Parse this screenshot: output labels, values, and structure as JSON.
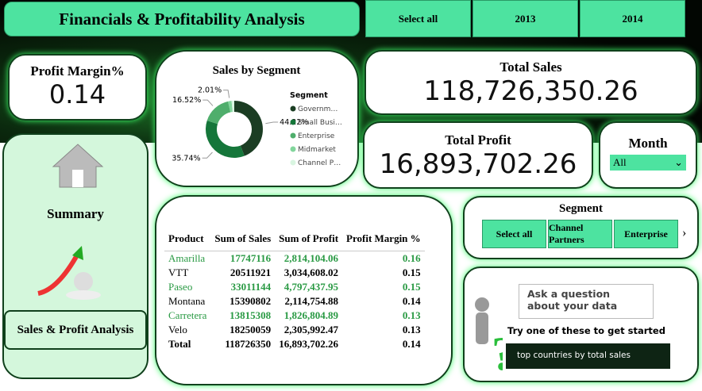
{
  "header": {
    "title": "Financials & Profitability Analysis",
    "year_buttons": [
      "Select all",
      "2013",
      "2014"
    ]
  },
  "profit_margin": {
    "label": "Profit Margin%",
    "value": "0.14"
  },
  "total_sales": {
    "label": "Total Sales",
    "value": "118,726,350.26"
  },
  "total_profit": {
    "label": "Total Profit",
    "value": "16,893,702.26"
  },
  "month": {
    "label": "Month",
    "selected": "All"
  },
  "nav": {
    "summary": "Summary",
    "sales_profit": "Sales & Profit Analysis"
  },
  "chart_data": {
    "type": "pie",
    "title": "Sales by Segment",
    "legend_title": "Segment",
    "categories": [
      "Governm…",
      "Small Busi…",
      "Enterprise",
      "Midmarket",
      "Channel P…"
    ],
    "values": [
      44.22,
      35.74,
      16.52,
      2.01,
      1.51
    ],
    "value_labels": [
      "44.22%",
      "35.74%",
      "16.52%",
      "2.01%",
      null
    ],
    "colors": [
      "#1b3d23",
      "#15763a",
      "#4fae6c",
      "#82d69c",
      "#d9f5e1"
    ]
  },
  "table": {
    "columns": [
      "Product",
      "Sum of Sales",
      "Sum of Profit",
      "Profit Margin %"
    ],
    "rows": [
      [
        "Amarilla",
        "17747116",
        "2,814,104.06",
        "0.16"
      ],
      [
        "VTT",
        "20511921",
        "3,034,608.02",
        "0.15"
      ],
      [
        "Paseo",
        "33011144",
        "4,797,437.95",
        "0.15"
      ],
      [
        "Montana",
        "15390802",
        "2,114,754.88",
        "0.14"
      ],
      [
        "Carretera",
        "13815308",
        "1,826,804.89",
        "0.13"
      ],
      [
        "Velo",
        "18250059",
        "2,305,992.47",
        "0.13"
      ]
    ],
    "total": [
      "Total",
      "118726350",
      "16,893,702.26",
      "0.14"
    ]
  },
  "segment_slicer": {
    "label": "Segment",
    "options": [
      "Select all",
      "Channel Partners",
      "Enterprise"
    ]
  },
  "qna": {
    "prompt": "Ask a question about your data",
    "hint": "Try one of these to get started",
    "suggestion": "top countries by total sales"
  }
}
